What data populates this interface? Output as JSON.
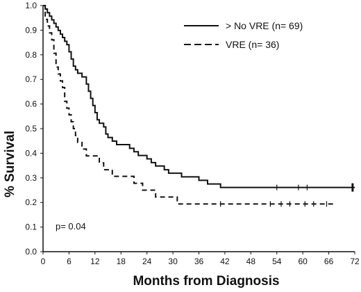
{
  "chart_data": {
    "type": "line",
    "xlabel": "Months from Diagnosis",
    "ylabel": "% Survival",
    "xlim": [
      0,
      72
    ],
    "ylim": [
      0,
      1.0
    ],
    "x_ticks": [
      0,
      6,
      12,
      18,
      24,
      30,
      36,
      42,
      48,
      54,
      60,
      66,
      72
    ],
    "y_ticks": [
      "0.0",
      "0.1",
      "0.2",
      "0.3",
      "0.4",
      "0.5",
      "0.6",
      "0.7",
      "0.8",
      "0.9",
      "1.0"
    ],
    "legend_position": "top-right",
    "annotation": "p= 0.04",
    "series": [
      {
        "name": "> No VRE (n= 69)",
        "line_style": "solid",
        "steps": [
          [
            0,
            1.0
          ],
          [
            0.5,
            0.986
          ],
          [
            1,
            0.971
          ],
          [
            1.5,
            0.957
          ],
          [
            2,
            0.942
          ],
          [
            2.5,
            0.928
          ],
          [
            3,
            0.913
          ],
          [
            3.5,
            0.899
          ],
          [
            4,
            0.884
          ],
          [
            4.5,
            0.87
          ],
          [
            5,
            0.855
          ],
          [
            5.5,
            0.841
          ],
          [
            6,
            0.812
          ],
          [
            6.5,
            0.783
          ],
          [
            7,
            0.754
          ],
          [
            7.5,
            0.739
          ],
          [
            8,
            0.725
          ],
          [
            9,
            0.71
          ],
          [
            10,
            0.681
          ],
          [
            10.5,
            0.652
          ],
          [
            11,
            0.623
          ],
          [
            11.5,
            0.594
          ],
          [
            12,
            0.565
          ],
          [
            12.5,
            0.536
          ],
          [
            13,
            0.522
          ],
          [
            14,
            0.507
          ],
          [
            14.5,
            0.478
          ],
          [
            15,
            0.464
          ],
          [
            16,
            0.449
          ],
          [
            17,
            0.435
          ],
          [
            20,
            0.42
          ],
          [
            21,
            0.406
          ],
          [
            22,
            0.391
          ],
          [
            24,
            0.377
          ],
          [
            25,
            0.362
          ],
          [
            26,
            0.348
          ],
          [
            28,
            0.333
          ],
          [
            29,
            0.319
          ],
          [
            32,
            0.304
          ],
          [
            36,
            0.29
          ],
          [
            38,
            0.275
          ],
          [
            41,
            0.261
          ],
          [
            72,
            0.261
          ]
        ],
        "censored_x": [
          54,
          59,
          61,
          71.5
        ]
      },
      {
        "name": "VRE (n= 36)",
        "line_style": "dashed",
        "steps": [
          [
            0,
            1.0
          ],
          [
            0.5,
            0.944
          ],
          [
            1,
            0.917
          ],
          [
            1.5,
            0.889
          ],
          [
            2,
            0.861
          ],
          [
            2.5,
            0.806
          ],
          [
            3,
            0.75
          ],
          [
            3.5,
            0.722
          ],
          [
            4,
            0.694
          ],
          [
            4.5,
            0.667
          ],
          [
            5,
            0.611
          ],
          [
            5.5,
            0.583
          ],
          [
            6,
            0.556
          ],
          [
            6.5,
            0.528
          ],
          [
            7,
            0.5
          ],
          [
            7.5,
            0.472
          ],
          [
            8,
            0.444
          ],
          [
            9,
            0.417
          ],
          [
            10,
            0.389
          ],
          [
            13,
            0.361
          ],
          [
            14,
            0.333
          ],
          [
            16,
            0.306
          ],
          [
            21,
            0.278
          ],
          [
            23,
            0.25
          ],
          [
            26,
            0.222
          ],
          [
            31,
            0.194
          ],
          [
            67,
            0.194
          ]
        ],
        "censored_x": [
          41,
          52.5,
          55,
          57,
          60.5,
          62.5,
          65.5
        ]
      }
    ]
  }
}
